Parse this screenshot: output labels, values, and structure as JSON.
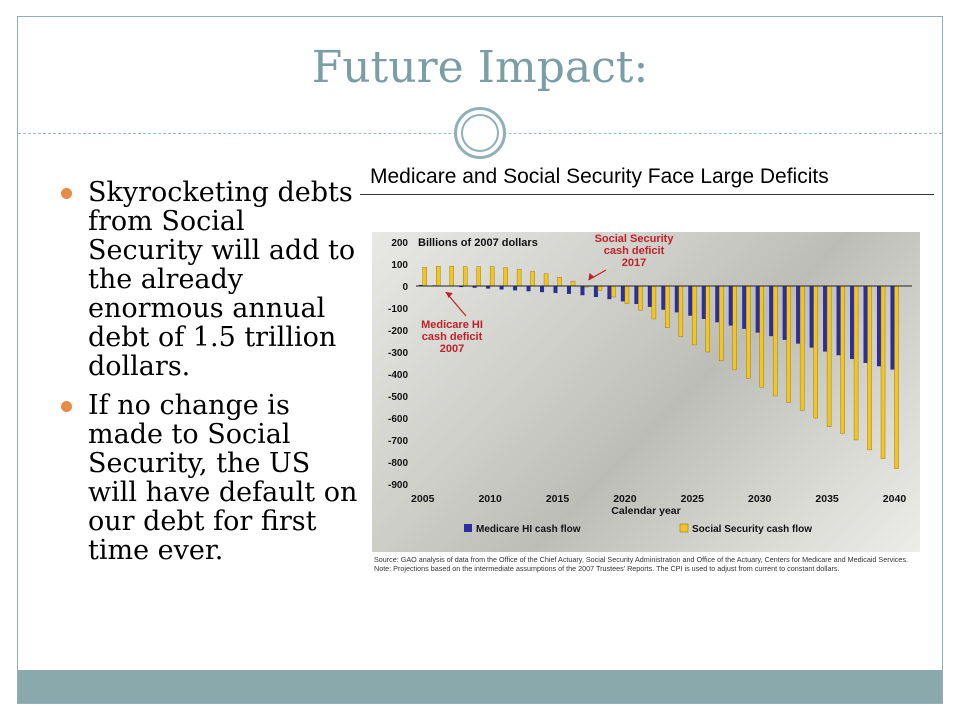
{
  "slide": {
    "title": "Future Impact:",
    "bullets": [
      "Skyrocketing debts from Social Security will add to the already enormous annual debt of 1.5 trillion dollars.",
      "If no change is made to Social Security, the US will have default on our debt for first time ever."
    ]
  },
  "colors": {
    "title": "#7a9ea6",
    "footer_bar": "#8aa9ad",
    "bullet": "#e98a47",
    "medicare": "#2b2f9e",
    "social_security": "#f2c522"
  },
  "chart_data": {
    "type": "bar",
    "title": "Medicare and Social Security Face Large Deficits",
    "unit_label": "Billions of 2007 dollars",
    "xlabel": "Calendar year",
    "ylim": [
      -900,
      200
    ],
    "y_ticks": [
      200,
      100,
      0,
      -100,
      -200,
      -300,
      -400,
      -500,
      -600,
      -700,
      -800,
      -900
    ],
    "x_ticks": [
      2005,
      2010,
      2015,
      2020,
      2025,
      2030,
      2035,
      2040
    ],
    "x": [
      2005,
      2006,
      2007,
      2008,
      2009,
      2010,
      2011,
      2012,
      2013,
      2014,
      2015,
      2016,
      2017,
      2018,
      2019,
      2020,
      2021,
      2022,
      2023,
      2024,
      2025,
      2026,
      2027,
      2028,
      2029,
      2030,
      2031,
      2032,
      2033,
      2034,
      2035,
      2036,
      2037,
      2038,
      2039,
      2040
    ],
    "series": [
      {
        "name": "Medicare HI cash flow",
        "values": [
          5,
          3,
          -2,
          -5,
          -8,
          -12,
          -16,
          -20,
          -24,
          -28,
          -32,
          -36,
          -42,
          -50,
          -60,
          -70,
          -82,
          -95,
          -108,
          -120,
          -135,
          -150,
          -165,
          -180,
          -195,
          -212,
          -228,
          -245,
          -262,
          -280,
          -298,
          -315,
          -332,
          -350,
          -365,
          -380
        ]
      },
      {
        "name": "Social Security cash flow",
        "values": [
          85,
          90,
          90,
          88,
          88,
          88,
          84,
          76,
          66,
          56,
          40,
          22,
          -5,
          -20,
          -50,
          -80,
          -110,
          -150,
          -190,
          -230,
          -268,
          -300,
          -340,
          -380,
          -420,
          -460,
          -500,
          -530,
          -565,
          -600,
          -640,
          -670,
          -700,
          -745,
          -785,
          -830
        ]
      }
    ],
    "annotations": [
      {
        "text": [
          "Social Security",
          "cash deficit",
          "2017"
        ],
        "target_year": 2017
      },
      {
        "text": [
          "Medicare HI",
          "cash deficit",
          "2007"
        ],
        "target_year": 2007
      }
    ],
    "legend_position": "bottom",
    "grid": false,
    "notes": [
      "Source: GAO analysis of data from the Office of the Chief Actuary, Social Security Administration and Office of the Actuary, Centers for Medicare and Medicaid Services.",
      "Note: Projections based on the intermediate assumptions of the 2007 Trustees' Reports. The CPI is used to adjust from current to constant dollars."
    ]
  }
}
